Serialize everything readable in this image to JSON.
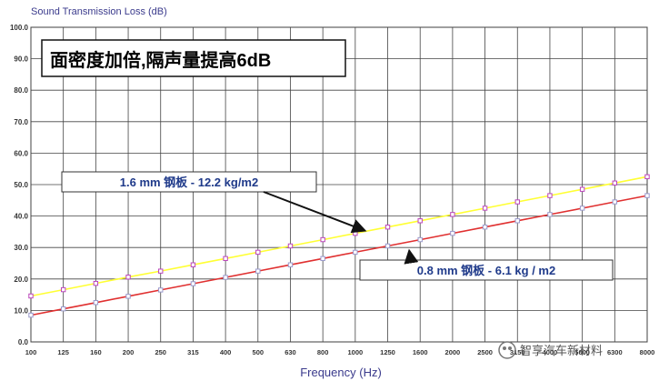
{
  "chart_data": {
    "type": "line",
    "ylabel": "Sound Transmission Loss (dB)",
    "xlabel": "Frequency (Hz)",
    "ylim": [
      0,
      100
    ],
    "yticks": [
      "0.0",
      "10.0",
      "20.0",
      "30.0",
      "40.0",
      "50.0",
      "60.0",
      "70.0",
      "80.0",
      "90.0",
      "100.0"
    ],
    "categories": [
      "100",
      "125",
      "160",
      "200",
      "250",
      "315",
      "400",
      "500",
      "630",
      "800",
      "1000",
      "1250",
      "1600",
      "2000",
      "2500",
      "3150",
      "4000",
      "5000",
      "6300",
      "8000"
    ],
    "grid": true,
    "series": [
      {
        "color": "#ffff33",
        "marker_color": "#bb44bb",
        "values": [
          14.6,
          16.6,
          18.6,
          20.6,
          22.5,
          24.5,
          26.5,
          28.5,
          30.5,
          32.5,
          34.5,
          36.5,
          38.5,
          40.5,
          42.5,
          44.5,
          46.5,
          48.5,
          50.5,
          52.5
        ]
      },
      {
        "color": "#e03030",
        "marker_color": "#9999cc",
        "values": [
          8.5,
          10.5,
          12.5,
          14.5,
          16.5,
          18.5,
          20.5,
          22.5,
          24.5,
          26.5,
          28.5,
          30.5,
          32.5,
          34.5,
          36.5,
          38.5,
          40.5,
          42.5,
          44.5,
          46.5
        ]
      }
    ],
    "annotations": [
      {
        "text": "面密度加倍,隔声量提高6dB"
      },
      {
        "text": "1.6 mm 钢板 - 12.2 kg/m2",
        "target_index": 11,
        "target_series": 0
      },
      {
        "text": "0.8 mm 钢板 - 6.1 kg / m2",
        "target_index": 12,
        "target_series": 1
      }
    ]
  },
  "watermark": {
    "text": "智享汽车新材料"
  }
}
